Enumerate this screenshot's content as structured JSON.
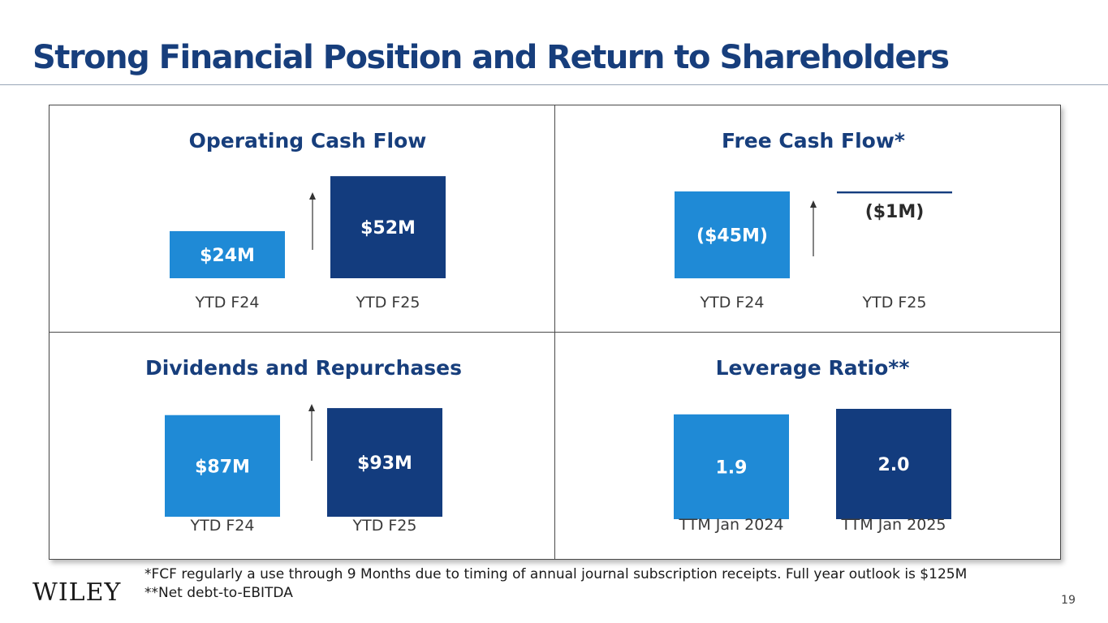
{
  "page_title": "Strong Financial Position and Return to Shareholders",
  "brand": {
    "logo_text": "WILEY"
  },
  "colors": {
    "title": "#173e7c",
    "prior": "#1f8ad6",
    "current": "#133c7e"
  },
  "footnotes": {
    "fcf": "*FCF regularly a use through 9 Months due to timing of annual journal subscription receipts.  Full year outlook is $125M",
    "leverage": "**Net debt-to-EBITDA"
  },
  "page_number": "19",
  "chart_data": [
    {
      "type": "bar",
      "title": "Operating Cash Flow",
      "categories": [
        "YTD F24",
        "YTD F25"
      ],
      "values": [
        24,
        52
      ],
      "unit": "$M",
      "data_labels": [
        "$24M",
        "$52M"
      ],
      "trend_arrow": "up"
    },
    {
      "type": "bar",
      "title": "Free Cash Flow*",
      "categories": [
        "YTD F24",
        "YTD F25"
      ],
      "values": [
        -45,
        -1
      ],
      "unit": "$M",
      "data_labels": [
        "($45M)",
        "($1M)"
      ],
      "trend_arrow": "up"
    },
    {
      "type": "bar",
      "title": "Dividends and Repurchases",
      "categories": [
        "YTD F24",
        "YTD F25"
      ],
      "values": [
        87,
        93
      ],
      "unit": "$M",
      "data_labels": [
        "$87M",
        "$93M"
      ],
      "trend_arrow": "up"
    },
    {
      "type": "bar",
      "title": "Leverage Ratio**",
      "categories": [
        "TTM Jan 2024",
        "TTM Jan 2025"
      ],
      "values": [
        1.9,
        2.0
      ],
      "unit": "x",
      "data_labels": [
        "1.9",
        "2.0"
      ],
      "trend_arrow": "none"
    }
  ]
}
